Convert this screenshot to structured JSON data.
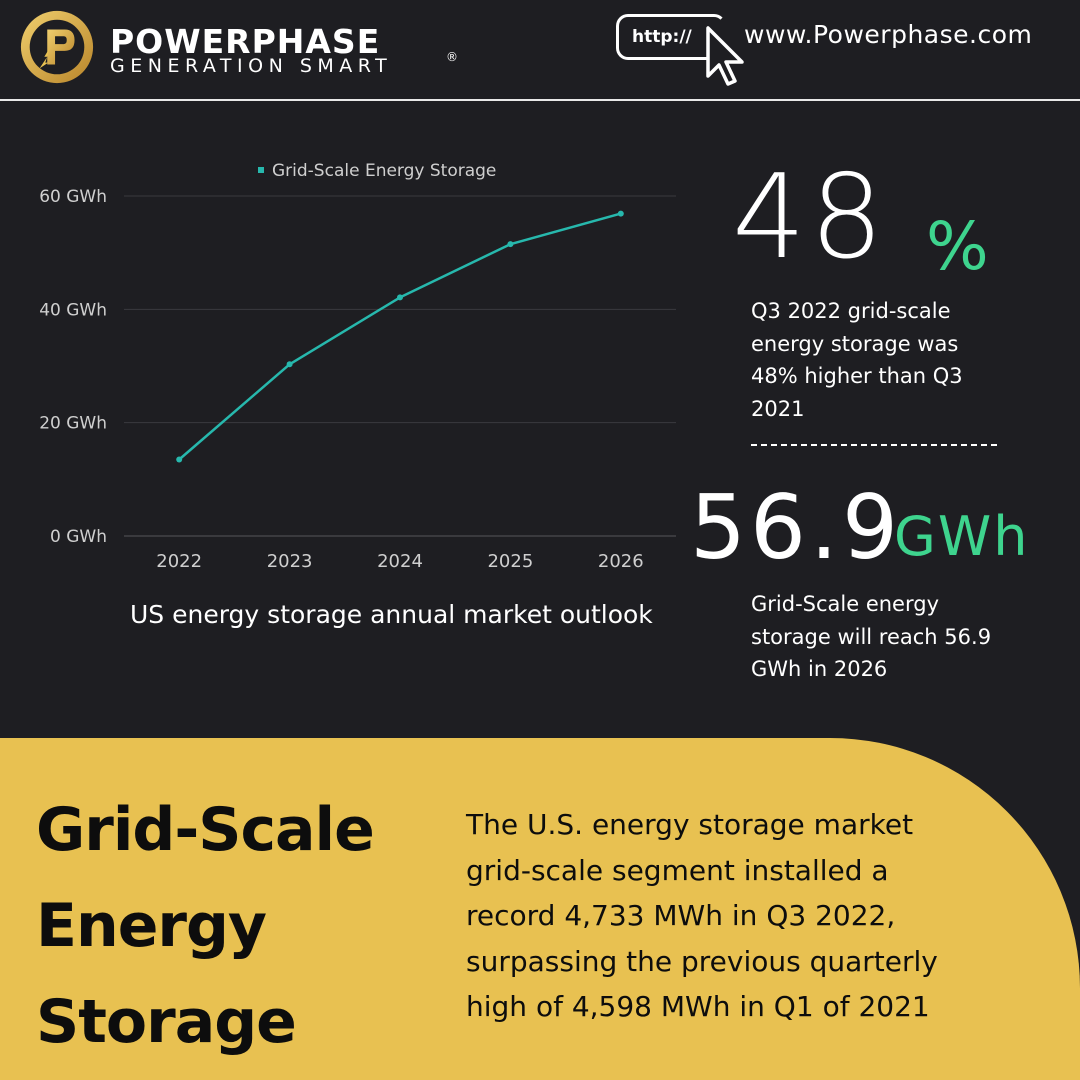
{
  "header": {
    "brand": "POWERPHASE",
    "tagline": "GENERATION SMART",
    "registered": "®",
    "url_label": "http://",
    "website": "www.Powerphase.com"
  },
  "chart_data": {
    "type": "line",
    "x": [
      "2022",
      "2023",
      "2024",
      "2025",
      "2026"
    ],
    "series": [
      {
        "name": "Grid-Scale Energy Storage",
        "values": [
          13.5,
          30.3,
          42.1,
          51.5,
          56.9
        ]
      }
    ],
    "y_ticks": [
      "0 GWh",
      "20 GWh",
      "40 GWh",
      "60 GWh"
    ],
    "ylim": [
      0,
      60
    ],
    "grid": true,
    "legend": "top-center",
    "caption": "US energy storage annual market outlook",
    "colors": {
      "series": "#27b8ad",
      "grid": "#3a3a3f",
      "text": "#cfcfcf"
    }
  },
  "stats": {
    "primary_value": "48",
    "primary_unit": "%",
    "primary_desc": "Q3 2022 grid-scale energy storage was 48% higher than Q3 2021",
    "secondary_value": "56.9",
    "secondary_unit": "GWh",
    "secondary_desc": "Grid-Scale energy storage will reach 56.9 GWh in 2026"
  },
  "panel": {
    "title": "Grid-Scale Energy Storage",
    "body": "The U.S. energy storage market grid-scale segment installed a record 4,733 MWh in Q3 2022, surpassing the previous quarterly high of 4,598 MWh in Q1 of 2021"
  },
  "colors": {
    "background": "#1e1e22",
    "accent_green": "#3ed48e",
    "panel_yellow": "#e8c151",
    "logo_gold": "#d6a637"
  }
}
